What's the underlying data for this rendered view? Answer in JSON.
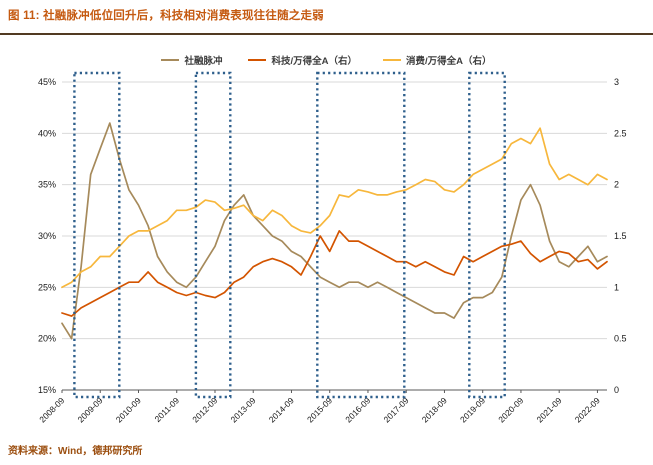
{
  "figure": {
    "title": "图 11: 社融脉冲低位回升后，科技相对消费表现往往随之走弱"
  },
  "source": {
    "text": "资料来源：Wind，德邦研究所"
  },
  "colors": {
    "title": "#c55a11",
    "divider": "#513a22",
    "source": "#9c4f10",
    "highlight_box": "#2e5f8c",
    "grid": "#d9d9d9",
    "axis": "#595959",
    "tick_text": "#1a1a1a"
  },
  "chart_data": {
    "type": "line",
    "title": "图 11: 社融脉冲低位回升后，科技相对消费表现往往随之走弱",
    "legend_position": "top",
    "grid": true,
    "x": [
      "2008-09",
      "2008-12",
      "2009-03",
      "2009-06",
      "2009-09",
      "2009-12",
      "2010-03",
      "2010-06",
      "2010-09",
      "2010-12",
      "2011-03",
      "2011-06",
      "2011-09",
      "2011-12",
      "2012-03",
      "2012-06",
      "2012-09",
      "2012-12",
      "2013-03",
      "2013-06",
      "2013-09",
      "2013-12",
      "2014-03",
      "2014-06",
      "2014-09",
      "2014-12",
      "2015-03",
      "2015-06",
      "2015-09",
      "2015-12",
      "2016-03",
      "2016-06",
      "2016-09",
      "2016-12",
      "2017-03",
      "2017-06",
      "2017-09",
      "2017-12",
      "2018-03",
      "2018-06",
      "2018-09",
      "2018-12",
      "2019-03",
      "2019-06",
      "2019-09",
      "2019-12",
      "2020-03",
      "2020-06",
      "2020-09",
      "2020-12",
      "2021-03",
      "2021-06",
      "2021-09",
      "2021-12",
      "2022-03",
      "2022-06",
      "2022-09",
      "2022-12"
    ],
    "x_tick_indices": [
      0,
      4,
      8,
      12,
      16,
      20,
      24,
      28,
      32,
      36,
      40,
      44,
      48,
      52,
      56
    ],
    "x_tick_labels": [
      "2008-09",
      "2009-09",
      "2010-09",
      "2011-09",
      "2012-09",
      "2013-09",
      "2014-09",
      "2015-09",
      "2016-09",
      "2017-09",
      "2018-09",
      "2019-09",
      "2020-09",
      "2021-09",
      "2022-09"
    ],
    "left_axis": {
      "min": 15,
      "max": 45,
      "tick_values": [
        45,
        40,
        35,
        30,
        25,
        20,
        15
      ],
      "tick_labels": [
        "45%",
        "40%",
        "35%",
        "30%",
        "25%",
        "20%",
        "15%"
      ]
    },
    "right_axis": {
      "min": 0,
      "max": 3,
      "tick_values": [
        3,
        2.5,
        2,
        1.5,
        1,
        0.5,
        0
      ],
      "tick_labels": [
        "3",
        "2.5",
        "2",
        "1.5",
        "1",
        "0.5",
        "0"
      ]
    },
    "series": [
      {
        "name": "社融脉冲",
        "axis": "left",
        "color": "#a68a5b",
        "values": [
          21.5,
          20.0,
          27.0,
          36.0,
          38.5,
          41.0,
          37.5,
          34.5,
          33.0,
          31.0,
          28.0,
          26.5,
          25.5,
          25.0,
          26.0,
          27.5,
          29.0,
          31.5,
          33.0,
          34.0,
          32.0,
          31.0,
          30.0,
          29.5,
          28.5,
          28.0,
          27.0,
          26.0,
          25.5,
          25.0,
          25.5,
          25.5,
          25.0,
          25.5,
          25.0,
          24.5,
          24.0,
          23.5,
          23.0,
          22.5,
          22.5,
          22.0,
          23.5,
          24.0,
          24.0,
          24.5,
          26.0,
          30.0,
          33.5,
          35.0,
          33.0,
          29.5,
          27.5,
          27.0,
          28.0,
          29.0,
          27.5,
          28.0
        ]
      },
      {
        "name": "科技/万得全A（右）",
        "axis": "right",
        "color": "#d35400",
        "values": [
          0.75,
          0.72,
          0.8,
          0.85,
          0.9,
          0.95,
          1.0,
          1.05,
          1.05,
          1.15,
          1.05,
          1.0,
          0.95,
          0.92,
          0.95,
          0.92,
          0.9,
          0.95,
          1.05,
          1.1,
          1.2,
          1.25,
          1.28,
          1.25,
          1.2,
          1.12,
          1.3,
          1.5,
          1.35,
          1.55,
          1.45,
          1.45,
          1.4,
          1.35,
          1.3,
          1.25,
          1.25,
          1.2,
          1.25,
          1.2,
          1.15,
          1.12,
          1.3,
          1.25,
          1.3,
          1.35,
          1.4,
          1.42,
          1.45,
          1.33,
          1.25,
          1.3,
          1.35,
          1.33,
          1.25,
          1.27,
          1.18,
          1.25
        ]
      },
      {
        "name": "消费/万得全A（右）",
        "axis": "right",
        "color": "#f7b73c",
        "values": [
          1.0,
          1.05,
          1.15,
          1.2,
          1.3,
          1.3,
          1.4,
          1.5,
          1.55,
          1.55,
          1.6,
          1.65,
          1.75,
          1.75,
          1.78,
          1.85,
          1.83,
          1.75,
          1.77,
          1.8,
          1.7,
          1.65,
          1.75,
          1.7,
          1.6,
          1.55,
          1.53,
          1.6,
          1.7,
          1.9,
          1.88,
          1.95,
          1.93,
          1.9,
          1.9,
          1.93,
          1.95,
          2.0,
          2.05,
          2.03,
          1.95,
          1.93,
          2.0,
          2.1,
          2.15,
          2.2,
          2.25,
          2.4,
          2.45,
          2.4,
          2.55,
          2.2,
          2.05,
          2.1,
          2.05,
          2.0,
          2.1,
          2.05
        ]
      }
    ],
    "highlight_boxes": [
      {
        "from_index": 1.3,
        "to_index": 6.0
      },
      {
        "from_index": 14.0,
        "to_index": 17.6
      },
      {
        "from_index": 26.7,
        "to_index": 35.8
      },
      {
        "from_index": 42.6,
        "to_index": 46.3
      }
    ]
  }
}
